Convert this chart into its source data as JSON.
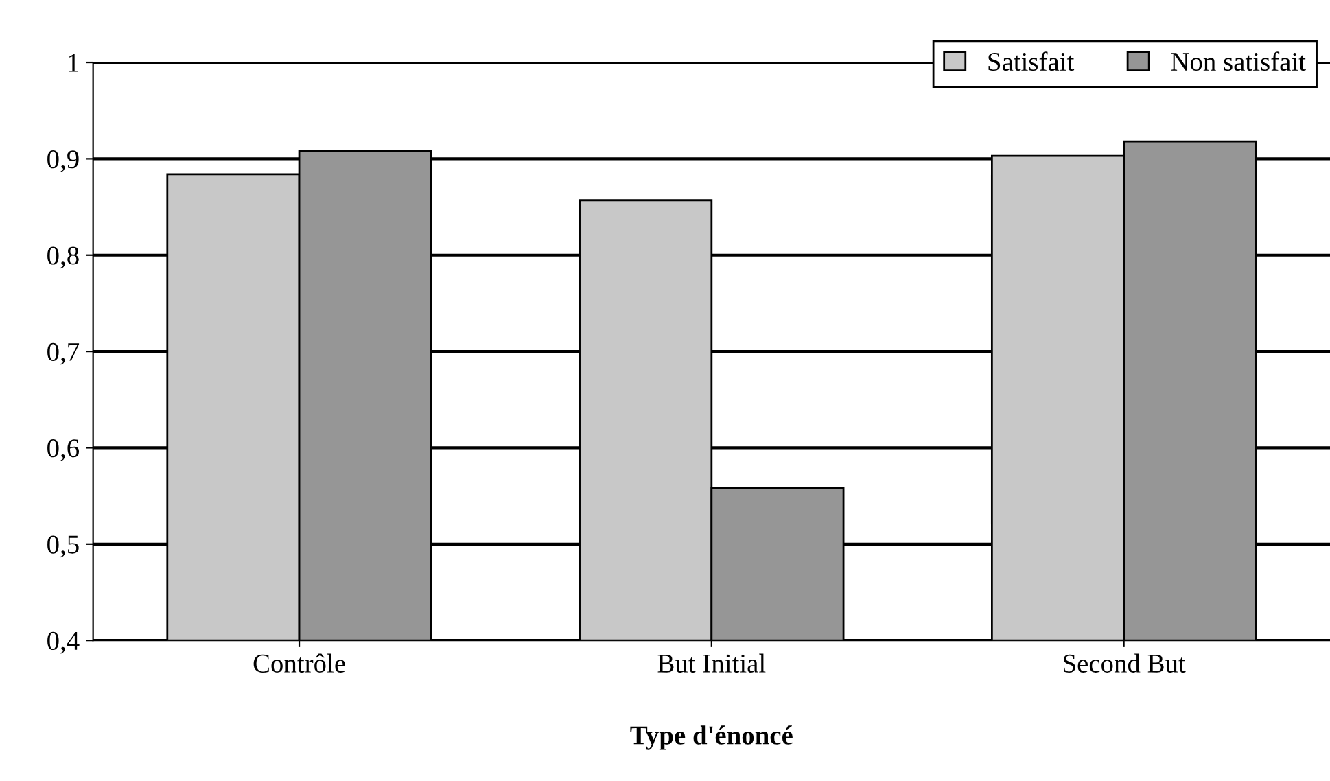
{
  "chart_data": {
    "type": "bar",
    "xlabel": "Type d'énoncé",
    "categories": [
      "Contrôle",
      "But Initial",
      "Second But"
    ],
    "series": [
      {
        "name": "Satisfait",
        "color": "#c8c8c8",
        "values": [
          0.884,
          0.857,
          0.903
        ]
      },
      {
        "name": "Non satisfait",
        "color": "#969696",
        "values": [
          0.908,
          0.558,
          0.918
        ]
      }
    ],
    "ylim": [
      0.4,
      1
    ],
    "yticks": [
      {
        "value": 0.4,
        "label": "0,4"
      },
      {
        "value": 0.5,
        "label": "0,5"
      },
      {
        "value": 0.6,
        "label": "0,6"
      },
      {
        "value": 0.7,
        "label": "0,7"
      },
      {
        "value": 0.8,
        "label": "0,8"
      },
      {
        "value": 0.9,
        "label": "0,9"
      },
      {
        "value": 1,
        "label": "1"
      }
    ],
    "grid": "y",
    "legend": "top right"
  }
}
